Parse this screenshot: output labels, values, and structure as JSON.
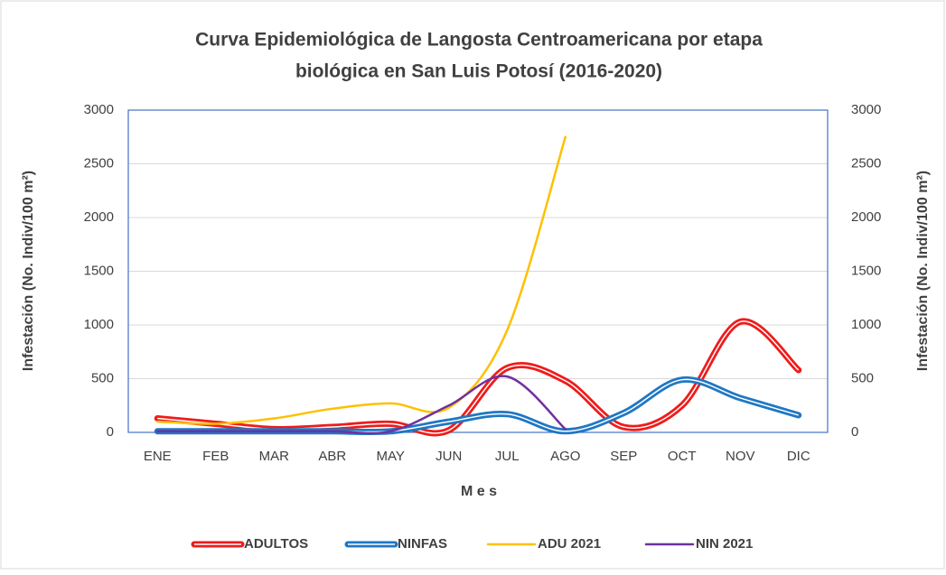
{
  "chart_data": {
    "type": "line",
    "title": [
      "Curva Epidemiológica de Langosta Centroamericana por etapa",
      "biológica en San Luis Potosí (2016-2020)"
    ],
    "xlabel": "M e s",
    "ylabel": "Infestación  (No. Indiv/100 m²)",
    "y2label": "Infestación  (No. Indiv/100 m²)",
    "categories": [
      "ENE",
      "FEB",
      "MAR",
      "ABR",
      "MAY",
      "JUN",
      "JUL",
      "AGO",
      "SEP",
      "OCT",
      "NOV",
      "DIC"
    ],
    "series": [
      {
        "name": "ADULTOS",
        "color": "#ee1c1c",
        "double": true,
        "values": [
          130,
          80,
          30,
          50,
          80,
          20,
          600,
          480,
          50,
          250,
          1030,
          580
        ]
      },
      {
        "name": "NINFAS",
        "color": "#1f77c4",
        "double": true,
        "values": [
          10,
          10,
          10,
          10,
          10,
          100,
          170,
          10,
          180,
          490,
          320,
          160
        ]
      },
      {
        "name": "ADU 2021",
        "color": "#ffc000",
        "double": false,
        "values": [
          100,
          80,
          130,
          220,
          270,
          230,
          950,
          2750,
          null,
          null,
          null,
          null
        ]
      },
      {
        "name": "NIN 2021",
        "color": "#7030a0",
        "double": false,
        "values": [
          10,
          10,
          10,
          10,
          10,
          250,
          520,
          30,
          null,
          null,
          null,
          null
        ]
      }
    ],
    "ylim": [
      0,
      3000
    ],
    "yticks": [
      0,
      500,
      1000,
      1500,
      2000,
      2500,
      3000
    ],
    "y2lim": [
      0,
      3000
    ],
    "y2ticks": [
      0,
      500,
      1000,
      1500,
      2000,
      2500,
      3000
    ],
    "legend": "bottom"
  }
}
